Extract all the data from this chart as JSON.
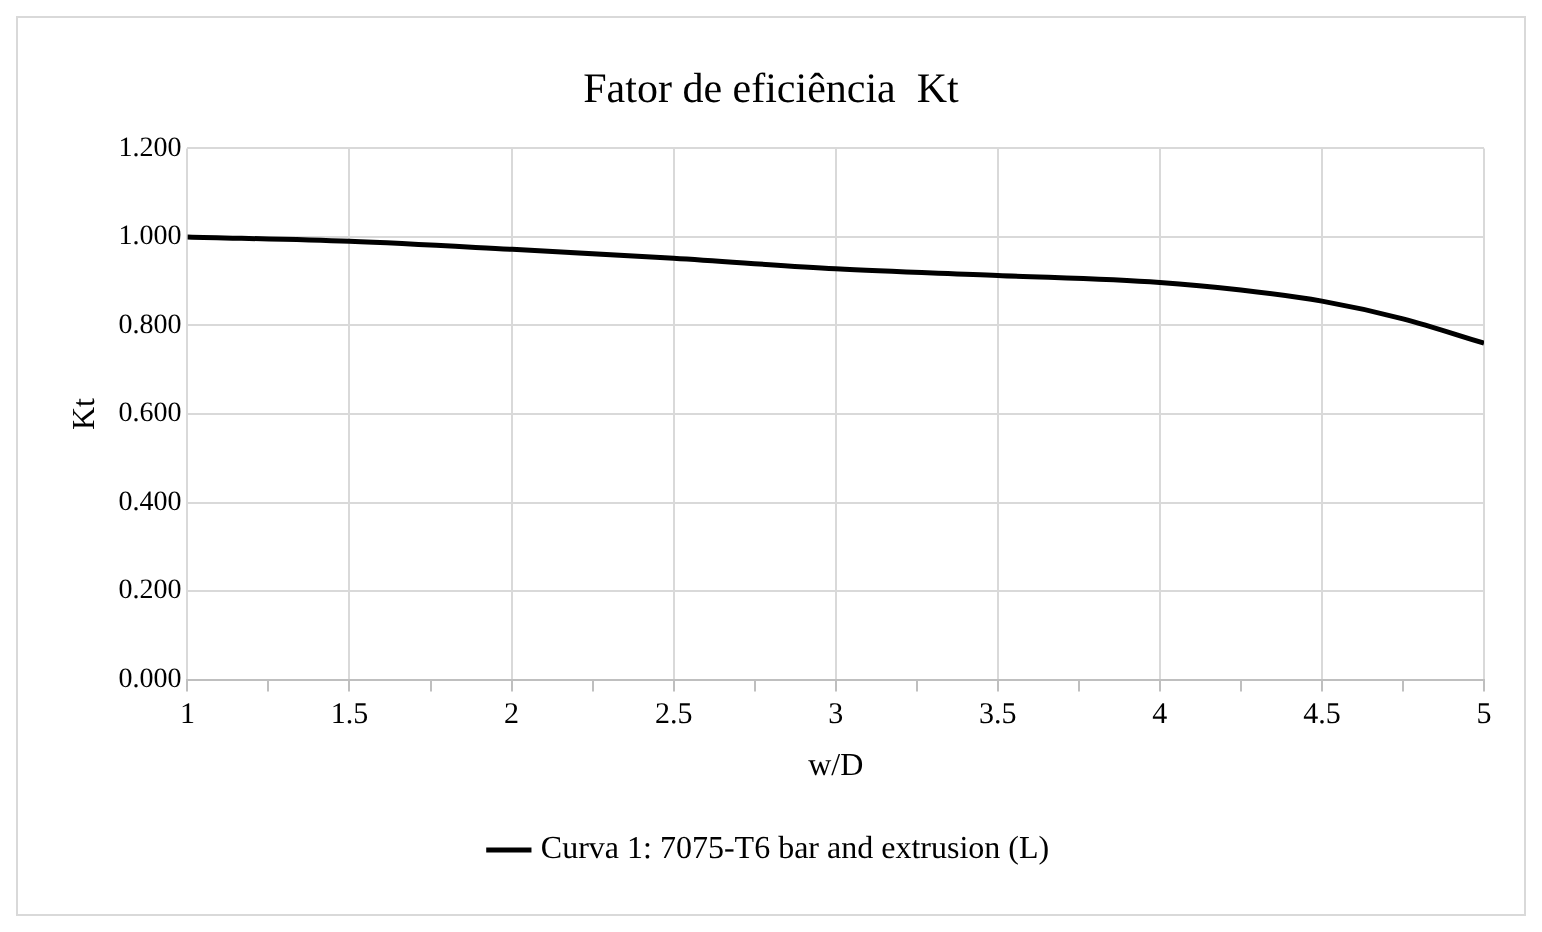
{
  "chart_data": {
    "type": "line",
    "title": "Fator de eficiência  Kt",
    "xlabel": "w/D",
    "ylabel": "Kt",
    "x": [
      1,
      1.5,
      2,
      2.5,
      3,
      3.5,
      4,
      4.25,
      4.5,
      4.75,
      5
    ],
    "series": [
      {
        "name": "Curva 1: 7075-T6 bar and extrusion (L)",
        "color": "#000000",
        "values": [
          1.0,
          0.99,
          0.972,
          0.952,
          0.928,
          0.913,
          0.897,
          0.88,
          0.855,
          0.815,
          0.76
        ]
      }
    ],
    "xlim": [
      1,
      5
    ],
    "xticks": [
      1,
      {
        "value": 1.25,
        "label": null
      },
      1.5,
      {
        "value": 1.75,
        "label": null
      },
      2,
      {
        "value": 2.25,
        "label": null
      },
      2.5,
      {
        "value": 2.75,
        "label": null
      },
      3,
      {
        "value": 3.25,
        "label": null
      },
      3.5,
      {
        "value": 3.75,
        "label": null
      },
      4,
      {
        "value": 4.25,
        "label": null
      },
      4.5,
      {
        "value": 4.75,
        "label": null
      },
      5
    ],
    "ylim": [
      0,
      1.2
    ],
    "yticks": [
      {
        "value": 0,
        "label": "0.000"
      },
      {
        "value": 0.2,
        "label": "0.200"
      },
      {
        "value": 0.4,
        "label": "0.400"
      },
      {
        "value": 0.6,
        "label": "0.600"
      },
      {
        "value": 0.8,
        "label": "0.800"
      },
      {
        "value": 1,
        "label": "1.000"
      },
      {
        "value": 1.2,
        "label": "1.200"
      }
    ],
    "grid": true,
    "legend": "bottom",
    "marker": "none",
    "line_style": "solid"
  }
}
